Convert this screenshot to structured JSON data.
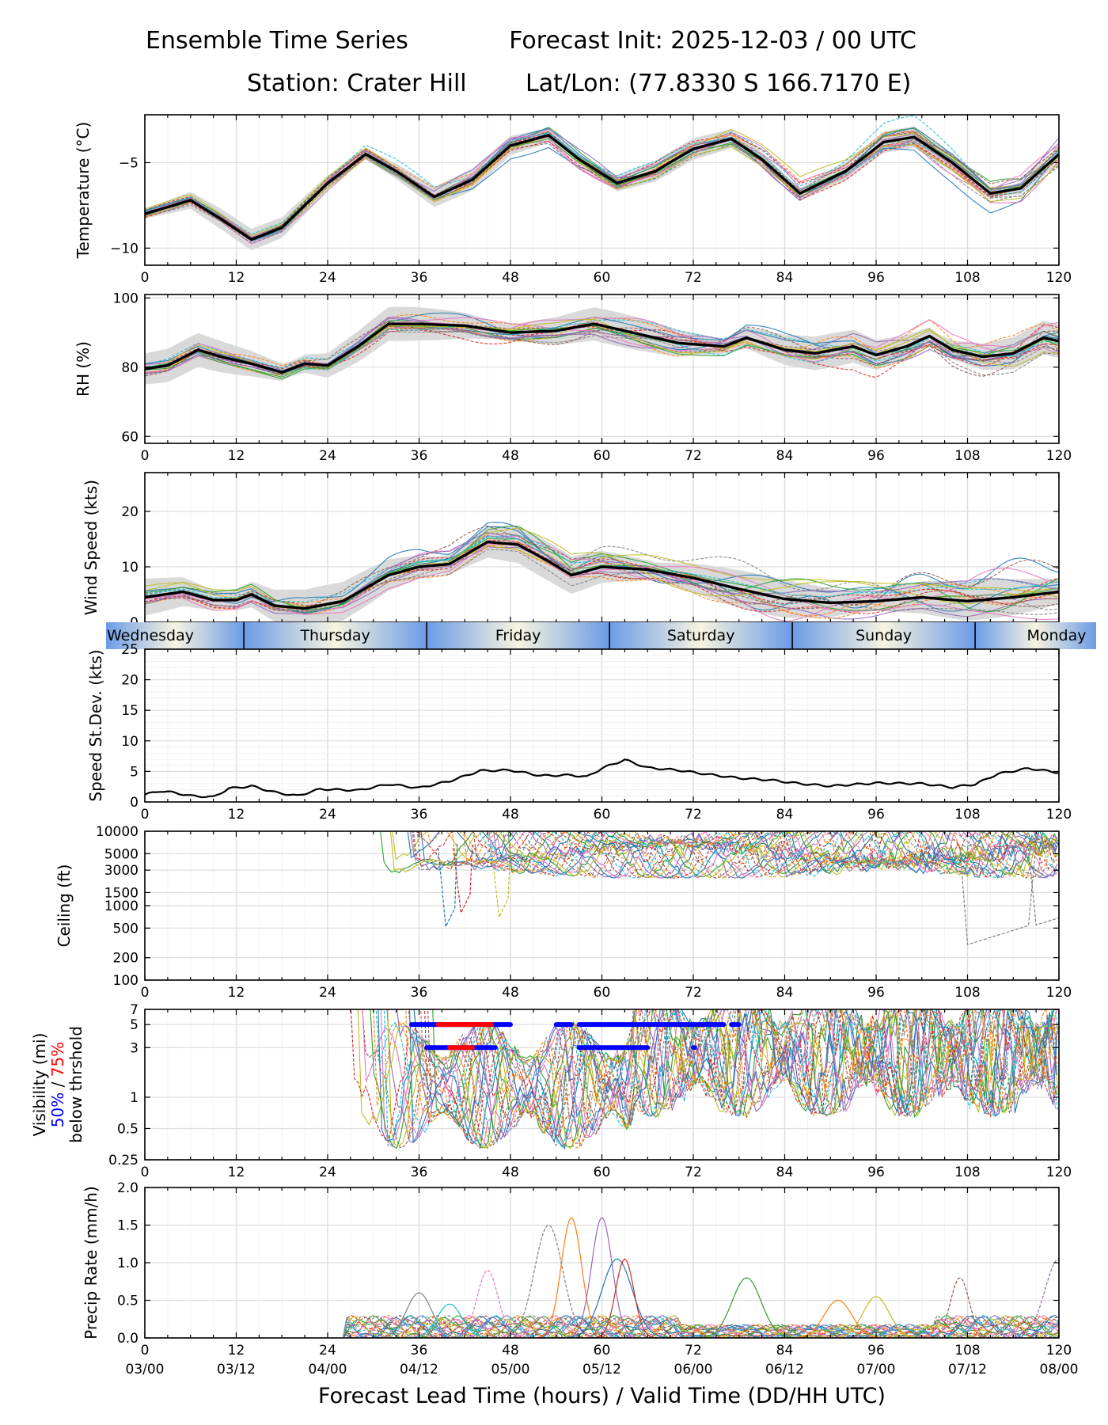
{
  "header": {
    "title_left": "Ensemble Time Series",
    "title_right": "Forecast Init: 2025-12-03 / 00 UTC",
    "station": "Station: Crater Hill",
    "latlon": "Lat/Lon: (77.8330 S 166.7170 E)"
  },
  "chart_data": {
    "type": "line",
    "x_range": [
      0,
      120
    ],
    "x_ticks": [
      0,
      12,
      24,
      36,
      48,
      60,
      72,
      84,
      96,
      108,
      120
    ],
    "x_tick_labels": [
      "0",
      "12",
      "24",
      "36",
      "48",
      "60",
      "72",
      "84",
      "96",
      "108",
      "120"
    ],
    "valid_time_labels": [
      "03/00",
      "03/12",
      "04/00",
      "04/12",
      "05/00",
      "05/12",
      "06/00",
      "06/12",
      "07/00",
      "07/12",
      "08/00"
    ],
    "xlabel": "Forecast Lead Time (hours) / Valid Time (DD/HH UTC)",
    "member_colors": [
      "#1f77b4",
      "#ff7f0e",
      "#2ca02c",
      "#d62728",
      "#9467bd",
      "#8c564b",
      "#e377c2",
      "#7f7f7f",
      "#bcbd22",
      "#17becf"
    ],
    "day_band": {
      "days": [
        "Wednesday",
        "Thursday",
        "Friday",
        "Saturday",
        "Sunday",
        "Monday"
      ],
      "day_start_hours": [
        -12,
        13,
        37,
        61,
        85,
        109
      ],
      "night_color": "#6b9be6",
      "day_color": "#f7f4e0"
    },
    "panels": [
      {
        "id": "temperature",
        "ylabel": "Temperature (°C)",
        "scale": "linear",
        "ylim": [
          -11,
          -2.2
        ],
        "yticks": [
          -10,
          -5
        ],
        "ytick_labels": [
          "−10",
          "−5"
        ],
        "mean": [
          [
            0,
            -8
          ],
          [
            6,
            -7.2
          ],
          [
            10,
            -8.3
          ],
          [
            14,
            -9.5
          ],
          [
            18,
            -8.8
          ],
          [
            24,
            -6.2
          ],
          [
            29,
            -4.5
          ],
          [
            33,
            -5.5
          ],
          [
            38,
            -7
          ],
          [
            43,
            -6
          ],
          [
            48,
            -4
          ],
          [
            53,
            -3.4
          ],
          [
            57,
            -4.8
          ],
          [
            62,
            -6.2
          ],
          [
            67,
            -5.5
          ],
          [
            72,
            -4.2
          ],
          [
            77,
            -3.6
          ],
          [
            81,
            -4.8
          ],
          [
            86,
            -6.8
          ],
          [
            92,
            -5.5
          ],
          [
            97,
            -3.8
          ],
          [
            101,
            -3.5
          ],
          [
            106,
            -5
          ],
          [
            111,
            -6.8
          ],
          [
            115,
            -6.5
          ],
          [
            120,
            -4.5
          ]
        ],
        "spread": 0.45,
        "member_noise": 0.7
      },
      {
        "id": "rh",
        "ylabel": "RH (%)",
        "scale": "linear",
        "ylim": [
          58,
          101
        ],
        "yticks": [
          60,
          80,
          100
        ],
        "ytick_labels": [
          "60",
          "80",
          "100"
        ],
        "mean": [
          [
            0,
            79.5
          ],
          [
            3,
            80.5
          ],
          [
            7,
            85
          ],
          [
            10,
            83
          ],
          [
            14,
            81
          ],
          [
            18,
            78.5
          ],
          [
            21,
            81
          ],
          [
            24,
            80.5
          ],
          [
            28,
            86
          ],
          [
            32,
            92.5
          ],
          [
            36,
            92.5
          ],
          [
            42,
            92
          ],
          [
            48,
            90
          ],
          [
            54,
            90.5
          ],
          [
            59,
            92.5
          ],
          [
            64,
            90
          ],
          [
            70,
            87
          ],
          [
            76,
            86
          ],
          [
            79,
            88.5
          ],
          [
            84,
            85
          ],
          [
            88,
            84
          ],
          [
            93,
            86
          ],
          [
            96,
            83.5
          ],
          [
            100,
            86
          ],
          [
            103,
            89
          ],
          [
            106,
            85
          ],
          [
            110,
            83
          ],
          [
            114,
            84
          ],
          [
            118,
            88.5
          ],
          [
            120,
            87.5
          ]
        ],
        "spread": 3.5,
        "member_noise": 4
      },
      {
        "id": "wind",
        "ylabel": "Wind Speed (kts)",
        "scale": "linear",
        "ylim": [
          0,
          27
        ],
        "yticks": [
          0,
          10,
          20
        ],
        "ytick_labels": [
          "0",
          "10",
          "20"
        ],
        "mean": [
          [
            0,
            4.5
          ],
          [
            5,
            5.5
          ],
          [
            9,
            4
          ],
          [
            12,
            4
          ],
          [
            14,
            5
          ],
          [
            17,
            3
          ],
          [
            21,
            2.5
          ],
          [
            26,
            3.8
          ],
          [
            32,
            8.5
          ],
          [
            36,
            10
          ],
          [
            40,
            10.5
          ],
          [
            45,
            14.5
          ],
          [
            49,
            14
          ],
          [
            53,
            11
          ],
          [
            56,
            8.5
          ],
          [
            60,
            10
          ],
          [
            66,
            9.5
          ],
          [
            72,
            8
          ],
          [
            78,
            6
          ],
          [
            84,
            4.2
          ],
          [
            90,
            3.5
          ],
          [
            96,
            3.8
          ],
          [
            102,
            4.5
          ],
          [
            108,
            3.8
          ],
          [
            114,
            4.5
          ],
          [
            120,
            5.5
          ]
        ],
        "spread": 2.5,
        "member_noise": 3.5
      },
      {
        "id": "speed_std",
        "ylabel": "Speed St.Dev. (kts)",
        "scale": "linear",
        "ylim": [
          0,
          25
        ],
        "yticks": [
          0,
          5,
          10,
          15,
          20,
          25
        ],
        "ytick_labels": [
          "0",
          "5",
          "10",
          "15",
          "20",
          "25"
        ],
        "values": [
          [
            0,
            1.2
          ],
          [
            2,
            1.8
          ],
          [
            4,
            1.5
          ],
          [
            6,
            1.0
          ],
          [
            9,
            0.8
          ],
          [
            11,
            2.2
          ],
          [
            14,
            2.6
          ],
          [
            17,
            1.6
          ],
          [
            20,
            1.0
          ],
          [
            23,
            2.1
          ],
          [
            28,
            1.9
          ],
          [
            32,
            2.9
          ],
          [
            36,
            2.3
          ],
          [
            40,
            3.4
          ],
          [
            44,
            5.1
          ],
          [
            48,
            5.2
          ],
          [
            52,
            4.3
          ],
          [
            56,
            4.4
          ],
          [
            58,
            4.1
          ],
          [
            60,
            5.5
          ],
          [
            63,
            6.9
          ],
          [
            66,
            5.6
          ],
          [
            70,
            5.2
          ],
          [
            74,
            4.5
          ],
          [
            78,
            3.9
          ],
          [
            82,
            3.6
          ],
          [
            86,
            3.0
          ],
          [
            90,
            2.6
          ],
          [
            96,
            3.1
          ],
          [
            102,
            3.0
          ],
          [
            106,
            2.4
          ],
          [
            109,
            2.9
          ],
          [
            112,
            4.6
          ],
          [
            116,
            5.5
          ],
          [
            120,
            4.8
          ]
        ]
      },
      {
        "id": "ceiling",
        "ylabel": "Ceiling (ft)",
        "scale": "log",
        "ylim": [
          100,
          10000
        ],
        "yticks": [
          100,
          200,
          500,
          1000,
          1500,
          3000,
          5000,
          10000
        ],
        "ytick_labels": [
          "100",
          "200",
          "500",
          "1000",
          "1500",
          "3000",
          "5000",
          "10000"
        ]
      },
      {
        "id": "visibility",
        "ylabel": "Visibility (mi)",
        "ylabel_50": "50%",
        "ylabel_sep": " / ",
        "ylabel_75": "75%",
        "ylabel_3": "below thrshold",
        "scale": "log",
        "ylim": [
          0.25,
          7
        ],
        "yticks": [
          0.25,
          0.5,
          1,
          3,
          5,
          7
        ],
        "ytick_labels": [
          "0.25",
          "0.5",
          "1",
          "3",
          "5",
          "7"
        ],
        "threshold_bars": [
          {
            "level": 5,
            "pct": "50%",
            "color": "#0000ff",
            "ranges": [
              [
                35,
                48
              ],
              [
                54,
                56
              ],
              [
                57,
                76
              ],
              [
                77,
                78
              ]
            ]
          },
          {
            "level": 5,
            "pct": "75%",
            "color": "#ff0000",
            "ranges": [
              [
                38.5,
                45.5
              ]
            ]
          },
          {
            "level": 3,
            "pct": "50%",
            "color": "#0000ff",
            "ranges": [
              [
                37,
                46
              ],
              [
                57,
                66
              ],
              [
                72,
                72.2
              ]
            ]
          },
          {
            "level": 3,
            "pct": "75%",
            "color": "#ff0000",
            "ranges": [
              [
                40,
                43
              ]
            ]
          }
        ]
      },
      {
        "id": "precip",
        "ylabel": "Precip Rate (mm/h)",
        "scale": "linear",
        "ylim": [
          0,
          2
        ],
        "yticks": [
          0,
          0.5,
          1,
          1.5,
          2
        ],
        "ytick_labels": [
          "0.0",
          "0.5",
          "1.0",
          "1.5",
          "2.0"
        ],
        "peaks": [
          [
            56,
            1.6
          ],
          [
            60,
            1.6
          ],
          [
            53,
            1.5
          ],
          [
            62,
            1.05
          ],
          [
            63,
            1.05
          ],
          [
            45,
            0.9
          ],
          [
            40,
            0.45
          ],
          [
            79,
            0.8
          ],
          [
            107,
            0.8
          ],
          [
            96,
            0.55
          ],
          [
            91,
            0.5
          ],
          [
            120,
            1.05
          ],
          [
            36,
            0.6
          ]
        ]
      }
    ]
  }
}
